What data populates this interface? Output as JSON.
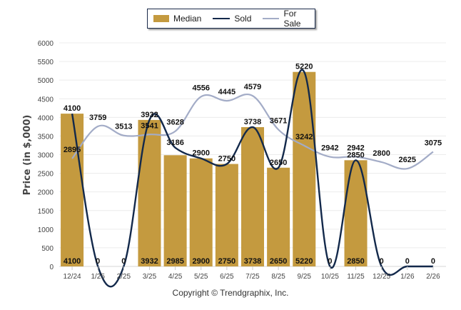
{
  "chart_data": {
    "type": "bar",
    "title": "",
    "xlabel": "",
    "ylabel": "Price (in $,000)",
    "ylim": [
      0,
      6000
    ],
    "yticks": [
      0,
      500,
      1000,
      1500,
      2000,
      2500,
      3000,
      3500,
      4000,
      4500,
      5000,
      5500,
      6000
    ],
    "grid": true,
    "legend_position": "top-center",
    "categories": [
      "12/24",
      "1/25",
      "2/25",
      "3/25",
      "4/25",
      "5/25",
      "6/25",
      "7/25",
      "8/25",
      "9/25",
      "10/25",
      "11/25",
      "12/25",
      "1/26",
      "2/26"
    ],
    "series": [
      {
        "name": "Median",
        "kind": "bar",
        "color": "#c49a3f",
        "values": [
          4100,
          0,
          0,
          3932,
          2985,
          2900,
          2750,
          3738,
          2650,
          5220,
          0,
          2850,
          0,
          0,
          0
        ]
      },
      {
        "name": "Sold",
        "kind": "line",
        "color": "#13294b",
        "values": [
          4100,
          0,
          0,
          3932,
          3186,
          2900,
          2750,
          3738,
          2650,
          5220,
          0,
          2850,
          0,
          0,
          0
        ]
      },
      {
        "name": "For Sale",
        "kind": "line",
        "color": "#a3acc7",
        "values": [
          2895,
          3759,
          3513,
          3541,
          3628,
          4556,
          4445,
          4579,
          3671,
          3242,
          2942,
          2942,
          2800,
          2625,
          3075
        ]
      }
    ]
  },
  "legend": {
    "items": [
      {
        "label": "Median"
      },
      {
        "label": "Sold"
      },
      {
        "label": "For Sale"
      }
    ]
  },
  "footer": {
    "copyright": "Copyright © Trendgraphix, Inc."
  }
}
